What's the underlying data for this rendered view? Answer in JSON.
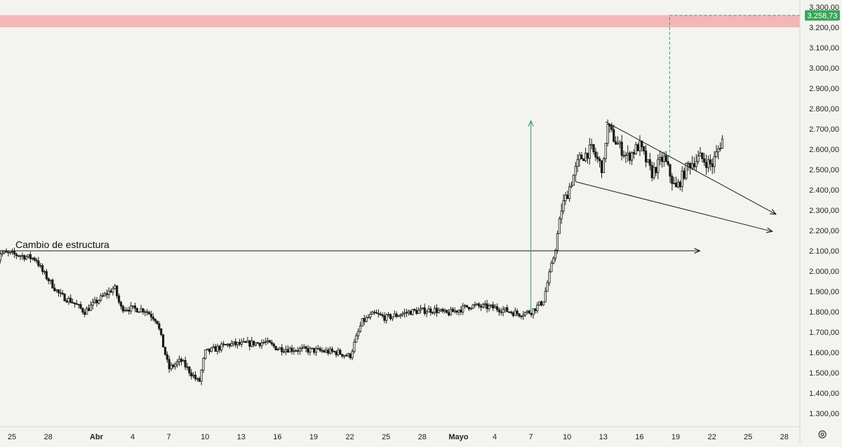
{
  "colors": {
    "background": "#f3f3ef",
    "candle": "#1a1a1a",
    "resistance_zone": "#f4b6b8",
    "projection_green": "#2e9e5b",
    "price_label_bg": "#3aa55c",
    "axis_text": "#222222"
  },
  "chart_data": {
    "type": "candlestick",
    "y_axis": {
      "position": "right",
      "range": [
        1230,
        3330
      ],
      "ticks": [
        "1.300,00",
        "1.400,00",
        "1.500,00",
        "1.600,00",
        "1.700,00",
        "1.800,00",
        "1.900,00",
        "2.000,00",
        "2.100,00",
        "2.200,00",
        "2.300,00",
        "2.400,00",
        "2.500,00",
        "2.600,00",
        "2.700,00",
        "2.800,00",
        "2.900,00",
        "3.000,00",
        "3.100,00",
        "3.200,00",
        "3.300,00"
      ],
      "tick_values": [
        1300,
        1400,
        1500,
        1600,
        1700,
        1800,
        1900,
        2000,
        2100,
        2200,
        2300,
        2400,
        2500,
        2600,
        2700,
        2800,
        2900,
        3000,
        3100,
        3200,
        3300
      ]
    },
    "x_axis": {
      "ticks": [
        {
          "label": "25",
          "bold": false,
          "day": 0
        },
        {
          "label": "28",
          "bold": false,
          "day": 3
        },
        {
          "label": "Abr",
          "bold": true,
          "day": 7
        },
        {
          "label": "4",
          "bold": false,
          "day": 10
        },
        {
          "label": "7",
          "bold": false,
          "day": 13
        },
        {
          "label": "10",
          "bold": false,
          "day": 16
        },
        {
          "label": "13",
          "bold": false,
          "day": 19
        },
        {
          "label": "16",
          "bold": false,
          "day": 22
        },
        {
          "label": "19",
          "bold": false,
          "day": 25
        },
        {
          "label": "22",
          "bold": false,
          "day": 28
        },
        {
          "label": "25",
          "bold": false,
          "day": 31
        },
        {
          "label": "28",
          "bold": false,
          "day": 34
        },
        {
          "label": "Mayo",
          "bold": true,
          "day": 37
        },
        {
          "label": "4",
          "bold": false,
          "day": 40
        },
        {
          "label": "7",
          "bold": false,
          "day": 43
        },
        {
          "label": "10",
          "bold": false,
          "day": 46
        },
        {
          "label": "13",
          "bold": false,
          "day": 49
        },
        {
          "label": "16",
          "bold": false,
          "day": 52
        },
        {
          "label": "19",
          "bold": false,
          "day": 55
        },
        {
          "label": "22",
          "bold": false,
          "day": 58
        },
        {
          "label": "25",
          "bold": false,
          "day": 61
        },
        {
          "label": "28",
          "bold": false,
          "day": 64
        }
      ]
    },
    "price_path": [
      [
        -1.3,
        2030
      ],
      [
        -1.0,
        2090
      ],
      [
        0.5,
        2080
      ],
      [
        2.0,
        2060
      ],
      [
        2.5,
        2000
      ],
      [
        4.0,
        1880
      ],
      [
        5.0,
        1850
      ],
      [
        6.0,
        1800
      ],
      [
        7.0,
        1850
      ],
      [
        8.5,
        1920
      ],
      [
        9.0,
        1820
      ],
      [
        11.0,
        1810
      ],
      [
        12.0,
        1760
      ],
      [
        13.0,
        1520
      ],
      [
        14.0,
        1560
      ],
      [
        15.5,
        1450
      ],
      [
        16.0,
        1600
      ],
      [
        18.0,
        1640
      ],
      [
        19.0,
        1640
      ],
      [
        21.0,
        1650
      ],
      [
        22.0,
        1620
      ],
      [
        25.0,
        1610
      ],
      [
        27.0,
        1600
      ],
      [
        28.0,
        1580
      ],
      [
        29.0,
        1750
      ],
      [
        30.0,
        1790
      ],
      [
        31.0,
        1770
      ],
      [
        33.0,
        1800
      ],
      [
        35.0,
        1810
      ],
      [
        36.0,
        1790
      ],
      [
        37.0,
        1810
      ],
      [
        38.0,
        1830
      ],
      [
        40.0,
        1820
      ],
      [
        42.0,
        1790
      ],
      [
        43.0,
        1800
      ],
      [
        44.0,
        1850
      ],
      [
        45.0,
        2100
      ],
      [
        45.5,
        2300
      ],
      [
        46.0,
        2380
      ],
      [
        47.0,
        2550
      ],
      [
        48.0,
        2600
      ],
      [
        49.0,
        2500
      ],
      [
        49.3,
        2720
      ],
      [
        50.0,
        2640
      ],
      [
        51.0,
        2560
      ],
      [
        52.0,
        2620
      ],
      [
        53.0,
        2480
      ],
      [
        54.0,
        2560
      ],
      [
        55.0,
        2400
      ],
      [
        56.0,
        2520
      ],
      [
        57.0,
        2560
      ],
      [
        58.0,
        2520
      ],
      [
        59.0,
        2670
      ]
    ],
    "horizontal_level": {
      "value": 2100,
      "from_day": 0,
      "to_day": 57
    },
    "resistance_zone": {
      "from": 3200,
      "to": 3260
    },
    "current_price": {
      "value": 3258.73,
      "label": "3.258,73",
      "projection_from_day": 54.5
    },
    "measured_move": {
      "day": 43,
      "from": 1800,
      "to": 2740
    },
    "wedge": {
      "upper_line": {
        "from": [
          49.2,
          2735
        ],
        "to": [
          63.3,
          2280
        ]
      },
      "lower_line": {
        "from": [
          46.7,
          2440
        ],
        "to": [
          63.0,
          2195
        ]
      }
    },
    "annotations": [
      {
        "id": "cambio-de-estructura",
        "text": "Cambio de estructura",
        "anchor_day": 0,
        "anchor_value": 2100
      }
    ]
  }
}
